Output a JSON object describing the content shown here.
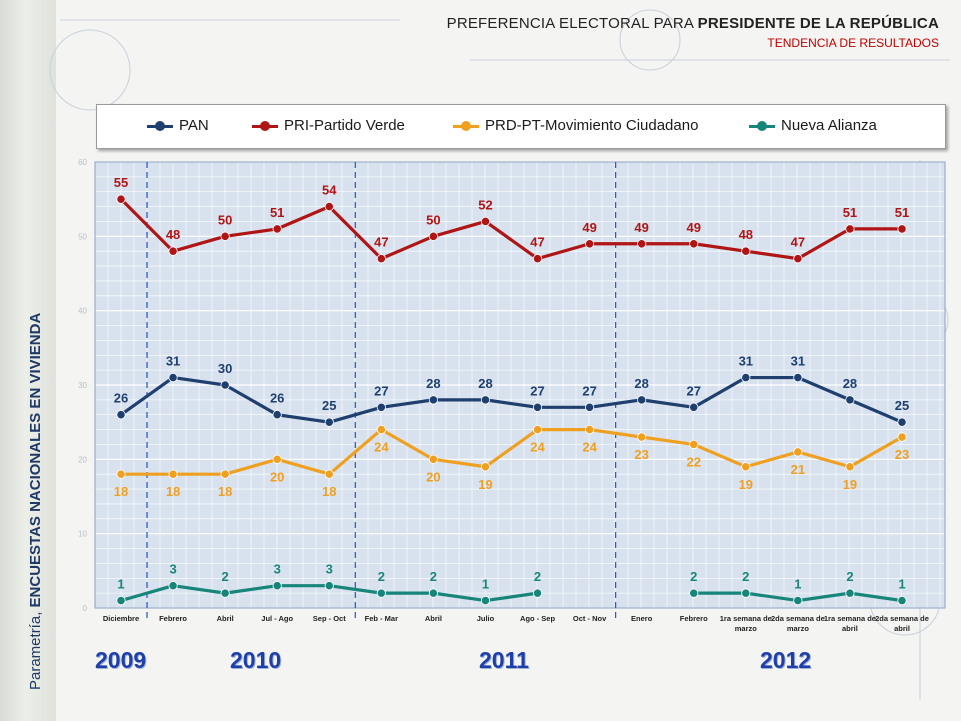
{
  "title": {
    "line1_prefix": "PREFERENCIA ELECTORAL PARA ",
    "line1_bold": "PRESIDENTE DE LA REPÚBLICA",
    "line2": "TENDENCIA DE RESULTADOS"
  },
  "sidebar": {
    "prefix": "Parametría, ",
    "bold": "ENCUESTAS NACIONALES EN VIVIENDA"
  },
  "years": [
    "2009",
    "2010",
    "2011",
    "2012"
  ],
  "colors": {
    "PAN": "#1f3f6e",
    "PRI": "#b01515",
    "PRD": "#f0a020",
    "NA": "#17857a",
    "plot_bg": "#d8e2ef",
    "grid": "#ffffff",
    "divider": "#2a50c8"
  },
  "chart_data": {
    "type": "line",
    "categories": [
      "Diciembre",
      "Febrero",
      "Abril",
      "Jul - Ago",
      "Sep - Oct",
      "Feb - Mar",
      "Abril",
      "Julio",
      "Ago - Sep",
      "Oct - Nov",
      "Enero",
      "Febrero",
      "1ra semana de marzo",
      "2da semana de marzo",
      "1ra semana de abril",
      "2da semana de abril"
    ],
    "series": [
      {
        "name": "PAN",
        "key": "PAN",
        "values": [
          26,
          31,
          30,
          26,
          25,
          27,
          28,
          28,
          27,
          27,
          28,
          27,
          31,
          31,
          28,
          25
        ]
      },
      {
        "name": "PRI-Partido Verde",
        "key": "PRI",
        "values": [
          55,
          48,
          50,
          51,
          54,
          47,
          50,
          52,
          47,
          49,
          49,
          49,
          48,
          47,
          51,
          51
        ]
      },
      {
        "name": "PRD-PT-Movimiento Ciudadano",
        "key": "PRD",
        "values": [
          18,
          18,
          18,
          20,
          18,
          24,
          20,
          19,
          24,
          24,
          23,
          22,
          19,
          21,
          19,
          23
        ]
      },
      {
        "name": "Nueva Alianza",
        "key": "NA",
        "values": [
          1,
          3,
          2,
          3,
          3,
          2,
          2,
          1,
          2,
          null,
          null,
          2,
          2,
          1,
          2,
          1
        ]
      }
    ],
    "ylim": [
      0,
      60
    ],
    "yticks": [
      0,
      10,
      20,
      30,
      40,
      50,
      60
    ],
    "year_dividers_after_index": [
      0,
      4,
      9
    ],
    "legend_position": "top",
    "grid": true
  }
}
